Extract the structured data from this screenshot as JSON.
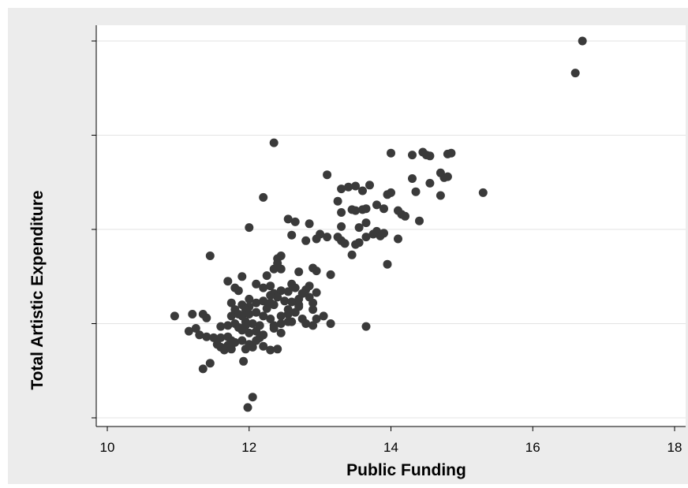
{
  "chart_data": {
    "type": "scatter",
    "title": "",
    "xlabel": "Public Funding",
    "ylabel": "Total Artistic Expenditure",
    "xlim": [
      10,
      18
    ],
    "xticks": [
      10,
      12,
      14,
      16,
      18
    ],
    "ylim": [
      -0.1,
      4.1
    ],
    "yticks": [
      0,
      1,
      2,
      3,
      4
    ],
    "ytick_labels_visible": false,
    "grid": "horizontal",
    "legend": "none",
    "marker_color": "#3a3a3a",
    "points": [
      [
        16.7,
        4.0
      ],
      [
        16.6,
        3.66
      ],
      [
        12.35,
        2.92
      ],
      [
        14.0,
        2.81
      ],
      [
        14.3,
        2.79
      ],
      [
        14.45,
        2.82
      ],
      [
        14.5,
        2.79
      ],
      [
        14.55,
        2.78
      ],
      [
        14.8,
        2.8
      ],
      [
        14.85,
        2.81
      ],
      [
        13.1,
        2.58
      ],
      [
        14.3,
        2.54
      ],
      [
        14.7,
        2.6
      ],
      [
        14.75,
        2.55
      ],
      [
        14.8,
        2.56
      ],
      [
        14.55,
        2.49
      ],
      [
        14.35,
        2.4
      ],
      [
        14.7,
        2.36
      ],
      [
        15.3,
        2.39
      ],
      [
        13.3,
        2.43
      ],
      [
        13.4,
        2.45
      ],
      [
        13.5,
        2.46
      ],
      [
        13.6,
        2.41
      ],
      [
        13.7,
        2.47
      ],
      [
        14.0,
        2.39
      ],
      [
        13.95,
        2.37
      ],
      [
        12.2,
        2.34
      ],
      [
        13.25,
        2.3
      ],
      [
        13.3,
        2.18
      ],
      [
        13.45,
        2.21
      ],
      [
        13.5,
        2.2
      ],
      [
        13.6,
        2.21
      ],
      [
        13.65,
        2.22
      ],
      [
        13.8,
        2.26
      ],
      [
        13.9,
        2.22
      ],
      [
        14.1,
        2.2
      ],
      [
        14.15,
        2.16
      ],
      [
        14.2,
        2.14
      ],
      [
        14.4,
        2.09
      ],
      [
        13.65,
        2.07
      ],
      [
        13.3,
        2.03
      ],
      [
        13.55,
        2.02
      ],
      [
        12.55,
        2.11
      ],
      [
        12.65,
        2.08
      ],
      [
        12.0,
        2.02
      ],
      [
        12.85,
        2.06
      ],
      [
        12.6,
        1.94
      ],
      [
        13.0,
        1.95
      ],
      [
        13.1,
        1.92
      ],
      [
        13.25,
        1.92
      ],
      [
        13.3,
        1.88
      ],
      [
        13.35,
        1.85
      ],
      [
        13.5,
        1.84
      ],
      [
        13.55,
        1.86
      ],
      [
        13.65,
        1.92
      ],
      [
        13.75,
        1.95
      ],
      [
        13.8,
        1.98
      ],
      [
        13.85,
        1.93
      ],
      [
        13.9,
        1.96
      ],
      [
        14.1,
        1.9
      ],
      [
        12.8,
        1.88
      ],
      [
        12.95,
        1.9
      ],
      [
        11.45,
        1.72
      ],
      [
        13.45,
        1.73
      ],
      [
        13.95,
        1.63
      ],
      [
        12.4,
        1.69
      ],
      [
        12.45,
        1.72
      ],
      [
        12.4,
        1.64
      ],
      [
        12.35,
        1.58
      ],
      [
        12.45,
        1.58
      ],
      [
        12.9,
        1.59
      ],
      [
        12.95,
        1.56
      ],
      [
        13.15,
        1.52
      ],
      [
        11.9,
        1.5
      ],
      [
        12.25,
        1.51
      ],
      [
        11.7,
        1.45
      ],
      [
        12.3,
        1.4
      ],
      [
        12.6,
        1.42
      ],
      [
        12.7,
        1.55
      ],
      [
        11.85,
        1.35
      ],
      [
        11.8,
        1.38
      ],
      [
        12.1,
        1.42
      ],
      [
        12.2,
        1.38
      ],
      [
        12.35,
        1.32
      ],
      [
        12.45,
        1.35
      ],
      [
        12.55,
        1.34
      ],
      [
        12.65,
        1.38
      ],
      [
        12.85,
        1.4
      ],
      [
        12.8,
        1.36
      ],
      [
        12.95,
        1.33
      ],
      [
        12.75,
        1.32
      ],
      [
        12.3,
        1.3
      ],
      [
        12.4,
        1.28
      ],
      [
        12.0,
        1.26
      ],
      [
        12.1,
        1.22
      ],
      [
        12.2,
        1.24
      ],
      [
        12.3,
        1.22
      ],
      [
        12.5,
        1.24
      ],
      [
        12.6,
        1.23
      ],
      [
        12.7,
        1.26
      ],
      [
        12.85,
        1.28
      ],
      [
        12.9,
        1.22
      ],
      [
        12.0,
        1.18
      ],
      [
        12.25,
        1.16
      ],
      [
        12.35,
        1.2
      ],
      [
        12.55,
        1.15
      ],
      [
        12.7,
        1.18
      ],
      [
        12.9,
        1.15
      ],
      [
        11.9,
        1.2
      ],
      [
        11.95,
        1.15
      ],
      [
        11.75,
        1.22
      ],
      [
        11.8,
        1.15
      ],
      [
        11.85,
        1.1
      ],
      [
        11.9,
        1.08
      ],
      [
        12.0,
        1.1
      ],
      [
        12.1,
        1.12
      ],
      [
        12.2,
        1.08
      ],
      [
        12.3,
        1.05
      ],
      [
        12.45,
        1.08
      ],
      [
        12.55,
        1.1
      ],
      [
        12.6,
        1.02
      ],
      [
        12.75,
        1.05
      ],
      [
        12.8,
        1.0
      ],
      [
        12.95,
        1.05
      ],
      [
        12.9,
        0.98
      ],
      [
        11.75,
        1.08
      ],
      [
        11.95,
        1.02
      ],
      [
        12.05,
        1.0
      ],
      [
        12.15,
        0.98
      ],
      [
        12.35,
        0.98
      ],
      [
        12.45,
        1.0
      ],
      [
        10.95,
        1.08
      ],
      [
        11.2,
        1.1
      ],
      [
        11.35,
        1.1
      ],
      [
        11.4,
        1.06
      ],
      [
        11.6,
        0.97
      ],
      [
        11.7,
        0.98
      ],
      [
        11.8,
        1.0
      ],
      [
        11.85,
        0.96
      ],
      [
        11.9,
        0.93
      ],
      [
        11.95,
        0.98
      ],
      [
        12.0,
        0.9
      ],
      [
        12.1,
        0.92
      ],
      [
        12.15,
        0.85
      ],
      [
        12.2,
        0.88
      ],
      [
        12.35,
        0.95
      ],
      [
        12.45,
        0.9
      ],
      [
        11.15,
        0.92
      ],
      [
        11.25,
        0.95
      ],
      [
        11.3,
        0.88
      ],
      [
        11.4,
        0.86
      ],
      [
        11.5,
        0.85
      ],
      [
        11.6,
        0.85
      ],
      [
        11.7,
        0.86
      ],
      [
        11.75,
        0.82
      ],
      [
        11.8,
        0.8
      ],
      [
        11.9,
        0.82
      ],
      [
        12.0,
        0.78
      ],
      [
        12.1,
        0.82
      ],
      [
        12.2,
        0.76
      ],
      [
        12.3,
        0.72
      ],
      [
        12.4,
        0.73
      ],
      [
        11.55,
        0.78
      ],
      [
        11.6,
        0.75
      ],
      [
        11.65,
        0.72
      ],
      [
        11.7,
        0.77
      ],
      [
        11.75,
        0.73
      ],
      [
        11.95,
        0.73
      ],
      [
        12.05,
        0.75
      ],
      [
        11.45,
        0.58
      ],
      [
        11.35,
        0.52
      ],
      [
        11.92,
        0.6
      ],
      [
        13.15,
        1.0
      ],
      [
        13.65,
        0.97
      ],
      [
        12.55,
        1.02
      ],
      [
        12.65,
        1.12
      ],
      [
        12.7,
        1.2
      ],
      [
        13.05,
        1.08
      ],
      [
        12.05,
        0.22
      ],
      [
        11.98,
        0.11
      ]
    ]
  }
}
